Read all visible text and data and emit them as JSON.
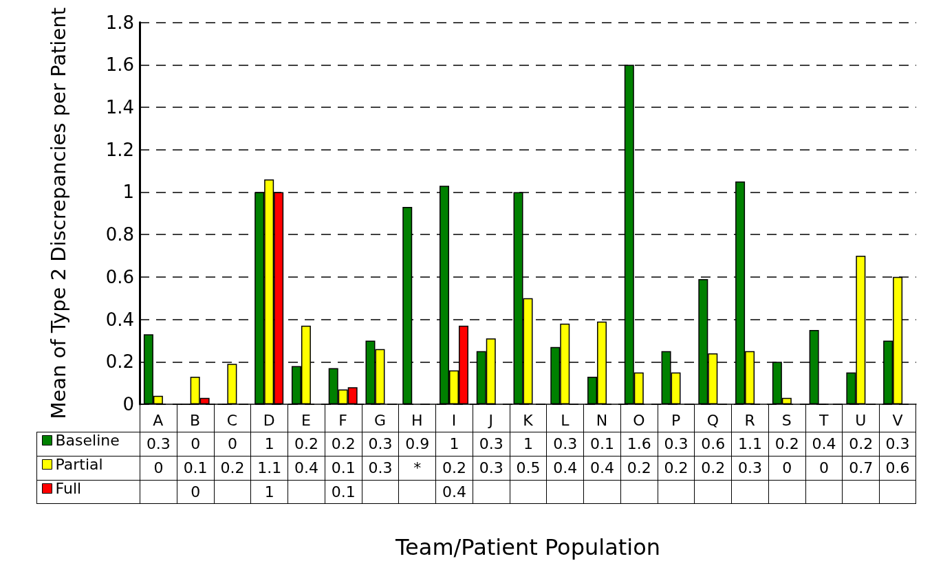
{
  "chart_data": {
    "type": "bar",
    "xlabel": "Team/Patient Population",
    "ylabel": "Mean of Type 2 Discrepancies per Patient",
    "categories": [
      "A",
      "B",
      "C",
      "D",
      "E",
      "F",
      "G",
      "H",
      "I",
      "J",
      "K",
      "L",
      "N",
      "O",
      "P",
      "Q",
      "R",
      "S",
      "T",
      "U",
      "V"
    ],
    "series": [
      {
        "name": "Baseline",
        "color": "#008000",
        "values": [
          0.33,
          0,
          0,
          1.0,
          0.18,
          0.17,
          0.3,
          0.93,
          1.03,
          0.25,
          1.0,
          0.27,
          0.13,
          1.6,
          0.25,
          0.59,
          1.05,
          0.2,
          0.35,
          0.15,
          0.3
        ],
        "value_labels": [
          "0.3",
          "0",
          "0",
          "1",
          "0.2",
          "0.2",
          "0.3",
          "0.9",
          "1",
          "0.3",
          "1",
          "0.3",
          "0.1",
          "1.6",
          "0.3",
          "0.6",
          "1.1",
          "0.2",
          "0.4",
          "0.2",
          "0.3"
        ]
      },
      {
        "name": "Partial",
        "color": "#ffff00",
        "values": [
          0.04,
          0.13,
          0.19,
          1.06,
          0.37,
          0.07,
          0.26,
          null,
          0.16,
          0.31,
          0.5,
          0.38,
          0.39,
          0.15,
          0.15,
          0.24,
          0.25,
          0.03,
          0,
          0.7,
          0.6
        ],
        "value_labels": [
          "0",
          "0.1",
          "0.2",
          "1.1",
          "0.4",
          "0.1",
          "0.3",
          "*",
          "0.2",
          "0.3",
          "0.5",
          "0.4",
          "0.4",
          "0.2",
          "0.2",
          "0.2",
          "0.3",
          "0",
          "0",
          "0.7",
          "0.6"
        ]
      },
      {
        "name": "Full",
        "color": "#ff0000",
        "values": [
          null,
          0.03,
          null,
          1.0,
          null,
          0.08,
          null,
          null,
          0.37,
          null,
          null,
          null,
          null,
          null,
          null,
          null,
          null,
          null,
          null,
          null,
          null
        ],
        "value_labels": [
          null,
          "0",
          null,
          "1",
          null,
          "0.1",
          null,
          null,
          "0.4",
          null,
          null,
          null,
          null,
          null,
          null,
          null,
          null,
          null,
          null,
          null,
          null
        ]
      }
    ],
    "ylim": [
      0,
      1.8
    ],
    "yticks": [
      0,
      0.2,
      0.4,
      0.6,
      0.8,
      1,
      1.2,
      1.4,
      1.6,
      1.8
    ],
    "grid": "y",
    "legend": "bottom"
  }
}
